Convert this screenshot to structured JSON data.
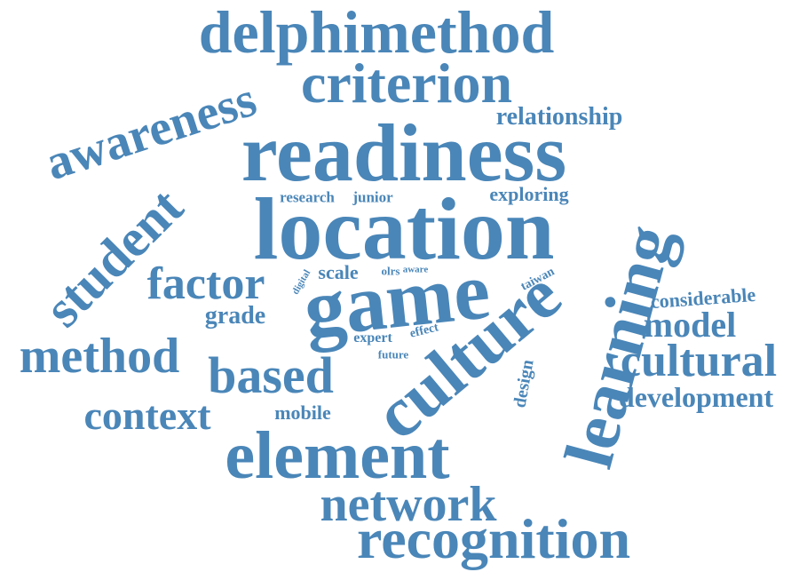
{
  "color": "#4a86b8",
  "words": {
    "delphimethod": "delphimethod",
    "criterion": "criterion",
    "awareness": "awareness",
    "relationship": "relationship",
    "readiness": "readiness",
    "student": "student",
    "research": "research",
    "junior": "junior",
    "exploring": "exploring",
    "location": "location",
    "learning": "learning",
    "factor": "factor",
    "digital": "digital",
    "scale": "scale",
    "olrs": "olrs",
    "aware": "aware",
    "taiwan": "taiwan",
    "game": "game",
    "considerable": "considerable",
    "grade": "grade",
    "model": "model",
    "method": "method",
    "expert": "expert",
    "effect": "effect",
    "future": "future",
    "culture": "culture",
    "cultural": "cultural",
    "based": "based",
    "design": "design",
    "development": "development",
    "context": "context",
    "mobile": "mobile",
    "element": "element",
    "network": "network",
    "recognition": "recognition"
  }
}
